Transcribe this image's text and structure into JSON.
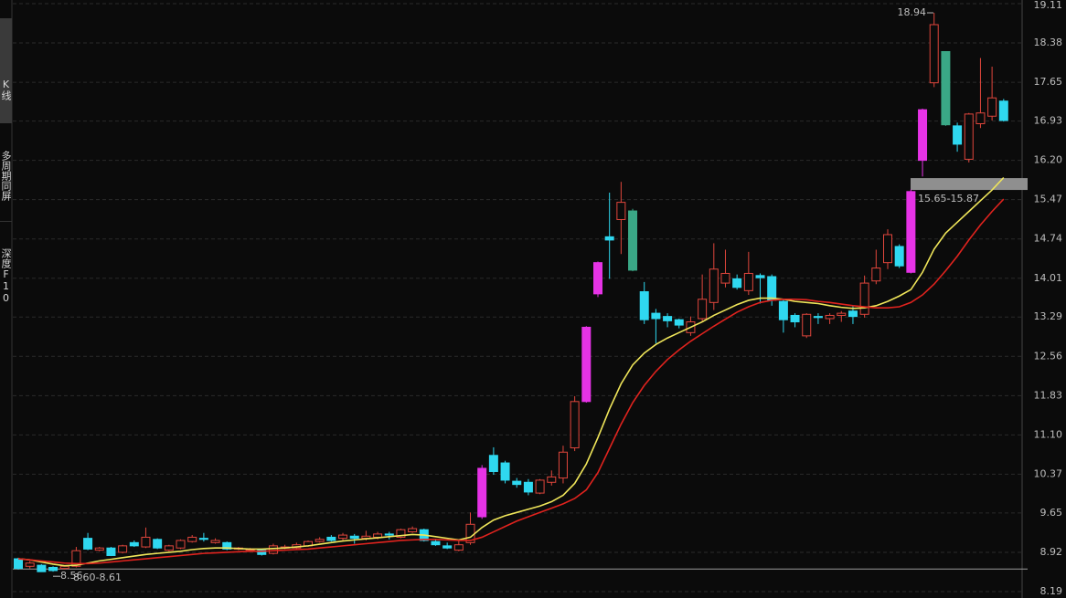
{
  "sidebar": [
    "K线",
    "多周期同屏",
    "深度F10"
  ],
  "chart_data": {
    "type": "candlestick",
    "ylim": [
      8.19,
      19.11
    ],
    "yticks": [
      19.11,
      18.38,
      17.65,
      16.93,
      {
        "value": 16.2,
        "label": "16.20"
      },
      15.47,
      14.74,
      14.01,
      13.29,
      12.56,
      11.83,
      {
        "value": 11.1,
        "label": "11.10"
      },
      10.37,
      9.65,
      8.92,
      8.19
    ],
    "grid": true,
    "up_color": "#e0463c",
    "down_color": "#2fd8f0",
    "open": [
      8.8,
      8.66,
      8.68,
      8.64,
      8.62,
      8.66,
      9.18,
      8.96,
      9.0,
      8.92,
      9.1,
      9.02,
      9.16,
      8.96,
      9.0,
      9.12,
      9.18,
      9.1,
      9.1,
      8.98,
      8.96,
      8.96,
      8.9,
      9.0,
      9.0,
      9.04,
      9.12,
      9.2,
      9.18,
      9.22,
      9.18,
      9.2,
      9.26,
      9.2,
      9.3,
      9.34,
      9.12,
      9.04,
      8.96,
      9.1,
      9.58,
      10.72,
      10.58,
      10.24,
      10.22,
      10.02,
      10.22,
      10.3,
      10.86,
      11.72,
      13.72,
      14.78,
      15.1,
      15.26,
      13.76,
      13.36,
      13.3,
      13.24,
      13.0,
      13.26,
      13.56,
      13.92,
      14.0,
      13.78,
      14.06,
      14.04,
      13.58,
      13.32,
      12.94,
      13.3,
      13.26,
      13.32,
      13.4,
      13.34,
      13.96,
      14.3,
      14.6,
      14.12,
      16.2,
      17.64,
      18.22,
      16.84,
      16.22,
      16.88,
      17.02,
      17.3
    ],
    "high": [
      8.82,
      8.76,
      8.7,
      8.66,
      8.68,
      9.02,
      9.28,
      9.02,
      9.02,
      9.06,
      9.14,
      9.38,
      9.18,
      9.06,
      9.16,
      9.24,
      9.28,
      9.18,
      9.12,
      9.02,
      9.0,
      8.98,
      9.08,
      9.06,
      9.1,
      9.14,
      9.2,
      9.24,
      9.28,
      9.26,
      9.32,
      9.3,
      9.3,
      9.36,
      9.4,
      9.36,
      9.16,
      9.1,
      9.16,
      9.66,
      10.54,
      10.87,
      10.62,
      10.3,
      10.28,
      10.28,
      10.44,
      10.9,
      11.82,
      13.12,
      14.32,
      15.6,
      15.8,
      15.3,
      13.94,
      13.44,
      13.36,
      13.26,
      13.3,
      14.08,
      14.66,
      14.54,
      14.08,
      14.5,
      14.1,
      14.08,
      13.62,
      13.36,
      13.36,
      13.36,
      13.36,
      13.4,
      13.5,
      14.06,
      14.54,
      14.92,
      14.64,
      15.66,
      17.16,
      18.94,
      18.22,
      16.9,
      17.08,
      18.1,
      17.94,
      17.34
    ],
    "low": [
      8.6,
      8.62,
      8.56,
      8.56,
      8.6,
      8.64,
      8.96,
      8.94,
      8.85,
      8.9,
      9.02,
      9.0,
      8.98,
      8.94,
      8.98,
      9.1,
      9.12,
      9.08,
      8.96,
      8.96,
      8.94,
      8.86,
      8.88,
      8.98,
      8.98,
      9.02,
      9.1,
      9.12,
      9.14,
      9.08,
      9.14,
      9.16,
      9.16,
      9.18,
      9.28,
      9.12,
      9.04,
      8.98,
      8.94,
      9.06,
      9.54,
      10.36,
      10.2,
      10.12,
      9.98,
      10.0,
      10.16,
      10.2,
      10.8,
      11.7,
      13.66,
      14.0,
      14.46,
      14.14,
      13.16,
      12.8,
      13.1,
      13.08,
      12.94,
      13.2,
      13.42,
      13.84,
      13.8,
      13.7,
      13.54,
      13.5,
      13.0,
      13.1,
      12.9,
      13.16,
      13.16,
      13.2,
      13.16,
      13.28,
      13.9,
      14.18,
      14.2,
      14.1,
      15.9,
      17.56,
      16.84,
      16.36,
      16.16,
      16.8,
      16.94,
      16.92
    ],
    "close": [
      8.62,
      8.72,
      8.56,
      8.58,
      8.66,
      8.95,
      8.98,
      9.0,
      8.86,
      9.04,
      9.04,
      9.2,
      9.0,
      9.04,
      9.14,
      9.2,
      9.16,
      9.14,
      8.98,
      9.0,
      8.98,
      8.88,
      9.04,
      9.02,
      9.06,
      9.12,
      9.16,
      9.14,
      9.24,
      9.18,
      9.22,
      9.26,
      9.24,
      9.34,
      9.36,
      9.14,
      9.06,
      9.0,
      9.06,
      9.44,
      10.48,
      10.42,
      10.26,
      10.18,
      10.04,
      10.26,
      10.32,
      10.78,
      11.72,
      13.1,
      14.3,
      14.72,
      15.42,
      14.16,
      13.24,
      13.26,
      13.22,
      13.14,
      13.2,
      13.62,
      14.18,
      14.1,
      13.84,
      14.1,
      14.02,
      13.6,
      13.24,
      13.2,
      13.34,
      13.28,
      13.32,
      13.36,
      13.3,
      13.92,
      14.2,
      14.82,
      14.24,
      15.62,
      17.14,
      18.72,
      16.86,
      16.5,
      17.06,
      17.08,
      17.36,
      16.94
    ],
    "colors": [
      "#2fd8f0",
      "#e0463c",
      "#2fd8f0",
      "#2fd8f0",
      "#e0463c",
      "#e0463c",
      "#2fd8f0",
      "#e0463c",
      "#2fd8f0",
      "#e0463c",
      "#2fd8f0",
      "#e0463c",
      "#2fd8f0",
      "#e0463c",
      "#e0463c",
      "#e0463c",
      "#2fd8f0",
      "#e0463c",
      "#2fd8f0",
      "#e0463c",
      "#e0463c",
      "#2fd8f0",
      "#e0463c",
      "#e0463c",
      "#e0463c",
      "#e0463c",
      "#e0463c",
      "#2fd8f0",
      "#e0463c",
      "#2fd8f0",
      "#e0463c",
      "#e0463c",
      "#2fd8f0",
      "#e0463c",
      "#e0463c",
      "#2fd8f0",
      "#2fd8f0",
      "#2fd8f0",
      "#e0463c",
      "#e0463c",
      "#e633e6",
      "#2fd8f0",
      "#2fd8f0",
      "#2fd8f0",
      "#2fd8f0",
      "#e0463c",
      "#e0463c",
      "#e0463c",
      "#e0463c",
      "#e633e6",
      "#e633e6",
      "#2fd8f0",
      "#e0463c",
      "#3aa886",
      "#2fd8f0",
      "#2fd8f0",
      "#2fd8f0",
      "#2fd8f0",
      "#e0463c",
      "#e0463c",
      "#e0463c",
      "#e0463c",
      "#2fd8f0",
      "#e0463c",
      "#2fd8f0",
      "#2fd8f0",
      "#2fd8f0",
      "#2fd8f0",
      "#e0463c",
      "#2fd8f0",
      "#e0463c",
      "#e0463c",
      "#2fd8f0",
      "#e0463c",
      "#e0463c",
      "#e0463c",
      "#2fd8f0",
      "#e633e6",
      "#e633e6",
      "#e0463c",
      "#3aa886",
      "#2fd8f0",
      "#e0463c",
      "#e0463c",
      "#e0463c",
      "#2fd8f0"
    ],
    "moving_averages": [
      {
        "color": "#f0e65a",
        "values": [
          8.8,
          8.78,
          8.74,
          8.7,
          8.67,
          8.68,
          8.72,
          8.76,
          8.79,
          8.82,
          8.85,
          8.88,
          8.9,
          8.92,
          8.94,
          8.97,
          8.99,
          9.0,
          9.0,
          8.99,
          8.98,
          8.98,
          8.99,
          9.0,
          9.02,
          9.04,
          9.07,
          9.1,
          9.13,
          9.15,
          9.17,
          9.19,
          9.21,
          9.23,
          9.25,
          9.24,
          9.21,
          9.18,
          9.15,
          9.2,
          9.38,
          9.52,
          9.6,
          9.66,
          9.72,
          9.78,
          9.86,
          9.98,
          10.2,
          10.56,
          11.05,
          11.58,
          12.05,
          12.4,
          12.62,
          12.78,
          12.9,
          13.0,
          13.1,
          13.2,
          13.32,
          13.42,
          13.52,
          13.6,
          13.64,
          13.64,
          13.62,
          13.58,
          13.56,
          13.54,
          13.5,
          13.47,
          13.45,
          13.46,
          13.5,
          13.58,
          13.68,
          13.8,
          14.12,
          14.55,
          14.85,
          15.05,
          15.25,
          15.45,
          15.65,
          15.88
        ]
      },
      {
        "color": "#e0231e",
        "values": [
          8.8,
          8.78,
          8.76,
          8.74,
          8.72,
          8.71,
          8.71,
          8.72,
          8.74,
          8.76,
          8.78,
          8.8,
          8.82,
          8.84,
          8.86,
          8.88,
          8.9,
          8.91,
          8.92,
          8.93,
          8.94,
          8.94,
          8.95,
          8.96,
          8.97,
          8.98,
          9.0,
          9.02,
          9.04,
          9.06,
          9.08,
          9.1,
          9.12,
          9.14,
          9.15,
          9.16,
          9.16,
          9.15,
          9.14,
          9.14,
          9.2,
          9.3,
          9.4,
          9.5,
          9.58,
          9.66,
          9.74,
          9.82,
          9.92,
          10.08,
          10.4,
          10.85,
          11.3,
          11.7,
          12.02,
          12.28,
          12.5,
          12.68,
          12.84,
          12.98,
          13.12,
          13.25,
          13.38,
          13.48,
          13.56,
          13.6,
          13.62,
          13.62,
          13.61,
          13.58,
          13.56,
          13.53,
          13.5,
          13.48,
          13.46,
          13.46,
          13.48,
          13.56,
          13.7,
          13.9,
          14.15,
          14.42,
          14.72,
          15.0,
          15.25,
          15.48
        ]
      }
    ],
    "ranges": [
      {
        "label": "15.65-15.87",
        "low": 15.65,
        "high": 15.87,
        "color": "#8f8f8f"
      },
      {
        "label": "8.60-8.61",
        "low": 8.6,
        "high": 8.61,
        "color": "#9a9a9a"
      }
    ],
    "annotations": [
      {
        "label": "18.94",
        "value": 18.94
      },
      {
        "label": "8.56",
        "value": 8.56
      }
    ]
  }
}
